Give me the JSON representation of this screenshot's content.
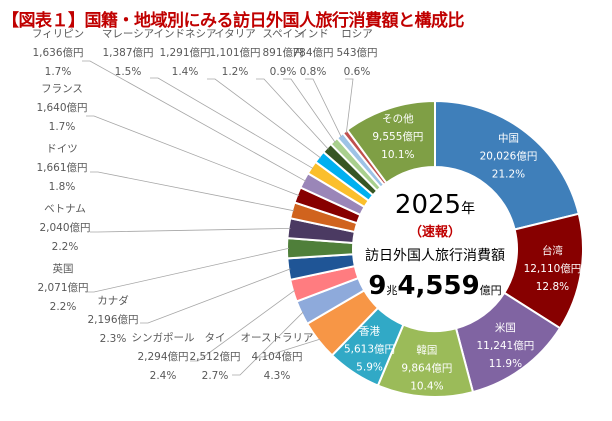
{
  "title": "【図表１】国籍・地域別にみる訪日外国人旅行消費額と構成比",
  "center": {
    "year": "2025",
    "year_unit": "年",
    "note": "（速報）",
    "label": "訪日外国人旅行消費額",
    "total_a": "9",
    "total_a_unit": "兆",
    "total_b": "4,559",
    "total_b_unit": "億円"
  },
  "chart_data": {
    "type": "pie",
    "donut": true,
    "unit": "億円",
    "title": "国籍・地域別にみる訪日外国人旅行消費額と構成比",
    "slices": [
      {
        "name": "中国",
        "value": 20026,
        "value_label": "20,026億円",
        "pct": "21.2%",
        "color": "#3f7fba"
      },
      {
        "name": "台湾",
        "value": 12110,
        "value_label": "12,110億円",
        "pct": "12.8%",
        "color": "#870000"
      },
      {
        "name": "米国",
        "value": 11241,
        "value_label": "11,241億円",
        "pct": "11.9%",
        "color": "#8064a2"
      },
      {
        "name": "韓国",
        "value": 9864,
        "value_label": "9,864億円",
        "pct": "10.4%",
        "color": "#9bbb59"
      },
      {
        "name": "香港",
        "value": 5613,
        "value_label": "5,613億円",
        "pct": "5.9%",
        "color": "#31a9c6"
      },
      {
        "name": "オーストラリア",
        "value": 4104,
        "value_label": "4,104億円",
        "pct": "4.3%",
        "color": "#f79646"
      },
      {
        "name": "タイ",
        "value": 2512,
        "value_label": "2,512億円",
        "pct": "2.7%",
        "color": "#8eaadb"
      },
      {
        "name": "シンガポール",
        "value": 2294,
        "value_label": "2,294億円",
        "pct": "2.4%",
        "color": "#ff7c80"
      },
      {
        "name": "カナダ",
        "value": 2196,
        "value_label": "2,196億円",
        "pct": "2.3%",
        "color": "#1f5596"
      },
      {
        "name": "英国",
        "value": 2071,
        "value_label": "2,071億円",
        "pct": "2.2%",
        "color": "#4f7f3a"
      },
      {
        "name": "ベトナム",
        "value": 2040,
        "value_label": "2,040億円",
        "pct": "2.2%",
        "color": "#4b3a62"
      },
      {
        "name": "ドイツ",
        "value": 1661,
        "value_label": "1,661億円",
        "pct": "1.8%",
        "color": "#d0631e"
      },
      {
        "name": "フランス",
        "value": 1640,
        "value_label": "1,640億円",
        "pct": "1.7%",
        "color": "#870000"
      },
      {
        "name": "フィリピン",
        "value": 1636,
        "value_label": "1,636億円",
        "pct": "1.7%",
        "color": "#9a86b8"
      },
      {
        "name": "マレーシア",
        "value": 1387,
        "value_label": "1,387億円",
        "pct": "1.5%",
        "color": "#fbbf2c"
      },
      {
        "name": "インドネシア",
        "value": 1291,
        "value_label": "1,291億円",
        "pct": "1.4%",
        "color": "#00b0f0"
      },
      {
        "name": "イタリア",
        "value": 1101,
        "value_label": "1,101億円",
        "pct": "1.2%",
        "color": "#375623"
      },
      {
        "name": "スペイン",
        "value": 891,
        "value_label": "891億円",
        "pct": "0.9%",
        "color": "#a9d08e"
      },
      {
        "name": "インド",
        "value": 784,
        "value_label": "784億円",
        "pct": "0.8%",
        "color": "#9dc3e6"
      },
      {
        "name": "ロシア",
        "value": 543,
        "value_label": "543億円",
        "pct": "0.6%",
        "color": "#c0504d"
      },
      {
        "name": "その他",
        "value": 9555,
        "value_label": "9,555億円",
        "pct": "10.1%",
        "color": "#7f9f45"
      }
    ]
  }
}
